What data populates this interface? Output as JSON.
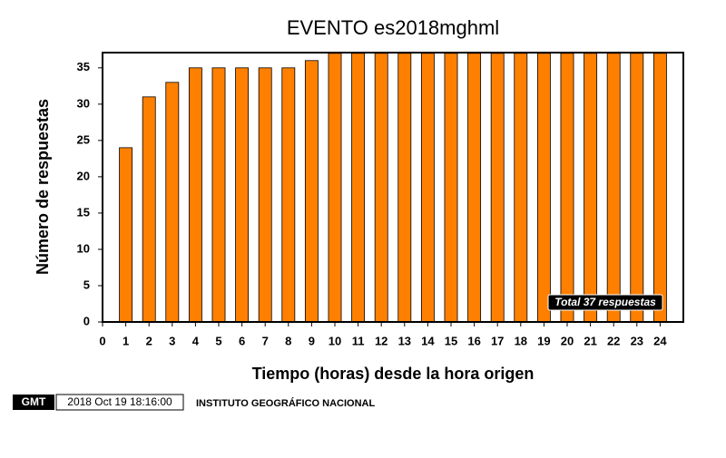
{
  "chart_data": {
    "type": "bar",
    "title": "EVENTO es2018mghml",
    "x_label": "Tiempo (horas) desde la hora origen",
    "y_label": "Número de respuestas",
    "x": [
      1,
      2,
      3,
      4,
      5,
      6,
      7,
      8,
      9,
      10,
      11,
      12,
      13,
      14,
      15,
      16,
      17,
      18,
      19,
      20,
      21,
      22,
      23,
      24
    ],
    "values": [
      24,
      31,
      33,
      35,
      35,
      35,
      35,
      35,
      36,
      37,
      37,
      37,
      37,
      37,
      37,
      37,
      37,
      37,
      37,
      37,
      37,
      37,
      37,
      37
    ],
    "color": "#ff8000",
    "xlim": [
      0,
      25
    ],
    "xticks": [
      0,
      1,
      2,
      3,
      4,
      5,
      6,
      7,
      8,
      9,
      10,
      11,
      12,
      13,
      14,
      15,
      16,
      17,
      18,
      19,
      20,
      21,
      22,
      23,
      24
    ],
    "ylim": [
      0,
      37.1
    ],
    "yticks": [
      0,
      5,
      10,
      15,
      20,
      25,
      30,
      35
    ],
    "annotation": "Total 37 respuestas"
  },
  "footer": {
    "logo": "GMT",
    "timestamp": "2018 Oct 19 18:16:00",
    "institution": "INSTITUTO GEOGRÁFICO NACIONAL"
  }
}
